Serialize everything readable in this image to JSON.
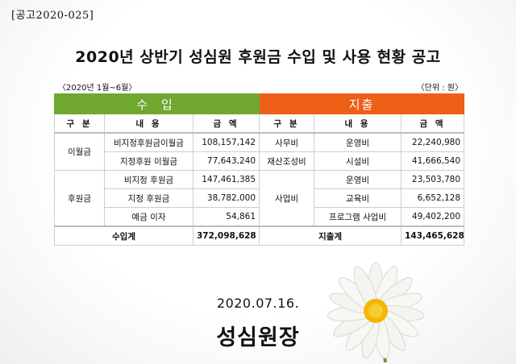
{
  "notice_id": "[공고2020-025]",
  "title": "2020년 상반기 성심원 후원금 수입 및 사용 현황 공고",
  "period": "〈2020년 1월~6월〉",
  "unit": "〈단위 : 원〉",
  "income": {
    "header": "수 입",
    "col_category": "구 분",
    "col_content": "내 용",
    "col_amount": "금 액",
    "groups": [
      {
        "category": "이월금",
        "rows": [
          {
            "content": "비지정후원금이월금",
            "amount": "108,157,142"
          },
          {
            "content": "지정후원 이월금",
            "amount": "77,643,240"
          }
        ]
      },
      {
        "category": "후원금",
        "rows": [
          {
            "content": "비지정 후원금",
            "amount": "147,461,385"
          },
          {
            "content": "지정 후원금",
            "amount": "38,782,000"
          },
          {
            "content": "예금 이자",
            "amount": "54,861"
          }
        ]
      }
    ],
    "total_label": "수입계",
    "total_amount": "372,098,628"
  },
  "expense": {
    "header": "지출",
    "col_category": "구 분",
    "col_content": "내 용",
    "col_amount": "금 액",
    "groups": [
      {
        "category": "사무비",
        "rows": [
          {
            "content": "운영비",
            "amount": "22,240,980"
          }
        ]
      },
      {
        "category": "재산조성비",
        "rows": [
          {
            "content": "시설비",
            "amount": "41,666,540"
          }
        ]
      },
      {
        "category": "사업비",
        "rows": [
          {
            "content": "운영비",
            "amount": "23,503,780"
          },
          {
            "content": "교육비",
            "amount": "6,652,128"
          },
          {
            "content": "프로그램 사업비",
            "amount": "49,402,200"
          }
        ]
      }
    ],
    "total_label": "지출계",
    "total_amount": "143,465,628"
  },
  "date": "2020.07.16.",
  "signature": "성심원장",
  "colors": {
    "income_header": "#6fa72f",
    "expense_header": "#ee5f17"
  },
  "icons": {
    "decoration": "daisy-flower-icon"
  }
}
